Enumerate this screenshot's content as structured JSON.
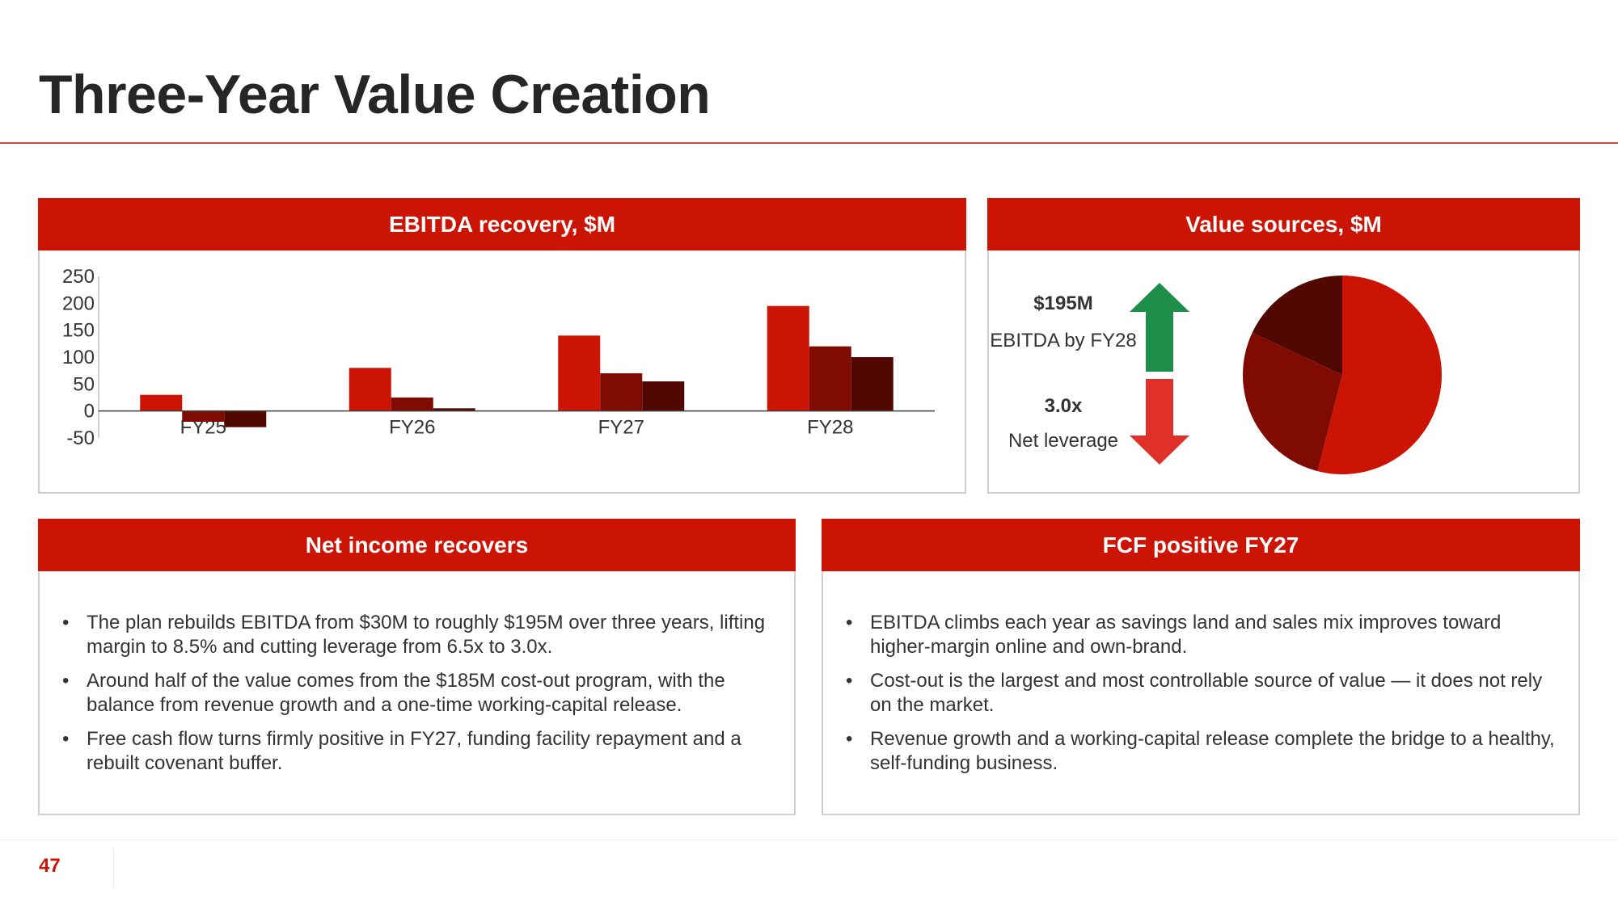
{
  "slide": {
    "title": "Three-Year Value Creation",
    "page_number": "47"
  },
  "colors": {
    "accent": "#cc1405",
    "series_primary": "#cc1405",
    "series_secondary": "#800b03",
    "series_tertiary": "#520802",
    "up_arrow": "#1e8f4a",
    "down_arrow": "#e0302a"
  },
  "panels": {
    "ebitda": {
      "title": "EBITDA recovery, $M"
    },
    "value": {
      "title": "Value sources, $M",
      "kpi_1_value": "$195M",
      "kpi_1_label": "EBITDA by FY28",
      "kpi_2_value": "3.0x",
      "kpi_2_label": "Net leverage",
      "up_icon": "arrow-up-icon",
      "down_icon": "arrow-down-icon"
    },
    "net_income": {
      "title": "Net income recovers",
      "bullets": [
        "The plan rebuilds EBITDA from $30M to roughly $195M over three years, lifting margin to 8.5% and cutting leverage from 6.5x to 3.0x.",
        "Around half of the value comes from the $185M cost-out program, with the balance from revenue growth and a one-time working-capital release.",
        "Free cash flow turns firmly positive in FY27, funding facility repayment and a rebuilt covenant buffer."
      ]
    },
    "fcf": {
      "title": "FCF positive FY27",
      "bullets": [
        "EBITDA climbs each year as savings land and sales mix improves toward higher-margin online and own-brand.",
        "Cost-out is the largest and most controllable source of value — it does not rely on the market.",
        "Revenue growth and a working-capital release complete the bridge to a healthy, self-funding business."
      ]
    }
  },
  "chart_data": [
    {
      "type": "bar",
      "title": "EBITDA recovery, $M",
      "categories": [
        "FY25",
        "FY26",
        "FY27",
        "FY28"
      ],
      "series": [
        {
          "values": [
            30,
            80,
            140,
            195
          ]
        },
        {
          "values": [
            -20,
            25,
            70,
            120
          ]
        },
        {
          "values": [
            -30,
            5,
            55,
            100
          ]
        }
      ],
      "yticks": [
        250,
        200,
        150,
        100,
        50,
        0,
        -50
      ],
      "ylim": [
        -50,
        250
      ],
      "grid": false,
      "legend": "none"
    },
    {
      "type": "pie",
      "title": "Value sources, $M",
      "values": [
        54,
        28,
        18
      ],
      "legend": "none"
    }
  ]
}
